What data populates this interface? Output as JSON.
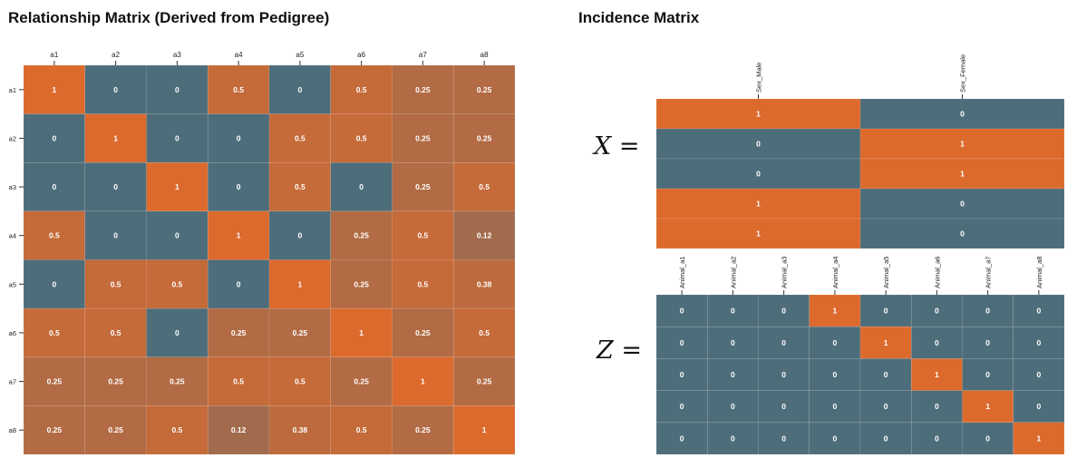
{
  "colors": {
    "low": "#4e6d7a",
    "high": "#dc6a2d",
    "tick": "#333333",
    "cell_text": "#ffffff"
  },
  "titles": {
    "relationship": "Relationship Matrix (Derived from Pedigree)",
    "incidence": "Incidence Matrix"
  },
  "equations": {
    "x_symbol": "X",
    "z_symbol": "Z",
    "equals": "="
  },
  "chart_data": [
    {
      "type": "heatmap",
      "name": "relationship",
      "title": "Relationship Matrix (Derived from Pedigree)",
      "col_labels": [
        "a1",
        "a2",
        "a3",
        "a4",
        "a5",
        "a6",
        "a7",
        "a8"
      ],
      "row_labels": [
        "a1",
        "a2",
        "a3",
        "a4",
        "a5",
        "a6",
        "a7",
        "a8"
      ],
      "value_range": [
        0,
        1
      ],
      "values": [
        [
          1,
          0,
          0,
          0.5,
          0,
          0.5,
          0.25,
          0.25
        ],
        [
          0,
          1,
          0,
          0,
          0.5,
          0.5,
          0.25,
          0.25
        ],
        [
          0,
          0,
          1,
          0,
          0.5,
          0,
          0.25,
          0.5
        ],
        [
          0.5,
          0,
          0,
          1,
          0,
          0.25,
          0.5,
          0.12
        ],
        [
          0,
          0.5,
          0.5,
          0,
          1,
          0.25,
          0.5,
          0.38
        ],
        [
          0.5,
          0.5,
          0,
          0.25,
          0.25,
          1,
          0.25,
          0.5
        ],
        [
          0.25,
          0.25,
          0.25,
          0.5,
          0.5,
          0.25,
          1,
          0.25
        ],
        [
          0.25,
          0.25,
          0.5,
          0.12,
          0.38,
          0.5,
          0.25,
          1
        ]
      ]
    },
    {
      "type": "heatmap",
      "name": "X",
      "title": "Incidence Matrix",
      "col_labels": [
        "Sex_Male",
        "Sex_Female"
      ],
      "row_labels": [],
      "value_range": [
        0,
        1
      ],
      "values": [
        [
          1,
          0
        ],
        [
          0,
          1
        ],
        [
          0,
          1
        ],
        [
          1,
          0
        ],
        [
          1,
          0
        ]
      ]
    },
    {
      "type": "heatmap",
      "name": "Z",
      "col_labels": [
        "Animal_a1",
        "Animal_a2",
        "Animal_a3",
        "Animal_a4",
        "Animal_a5",
        "Animal_a6",
        "Animal_a7",
        "Animal_a8"
      ],
      "row_labels": [],
      "value_range": [
        0,
        1
      ],
      "values": [
        [
          0,
          0,
          0,
          1,
          0,
          0,
          0,
          0
        ],
        [
          0,
          0,
          0,
          0,
          1,
          0,
          0,
          0
        ],
        [
          0,
          0,
          0,
          0,
          0,
          1,
          0,
          0
        ],
        [
          0,
          0,
          0,
          0,
          0,
          0,
          1,
          0
        ],
        [
          0,
          0,
          0,
          0,
          0,
          0,
          0,
          1
        ]
      ]
    }
  ]
}
